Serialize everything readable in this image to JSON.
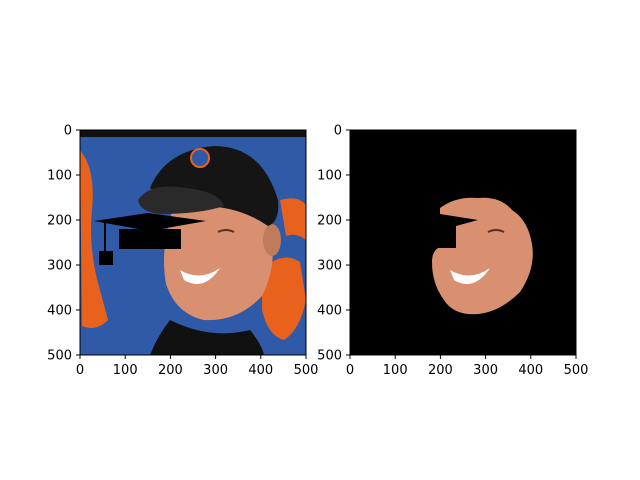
{
  "figure": {
    "background": "#ffffff"
  },
  "chart_data": [
    {
      "type": "image",
      "title": "",
      "xlabel": "",
      "ylabel": "",
      "xlim": [
        0,
        500
      ],
      "ylim": [
        500,
        0
      ],
      "xticks": [
        0,
        100,
        200,
        300,
        400,
        500
      ],
      "yticks": [
        0,
        100,
        200,
        300,
        400,
        500
      ],
      "grid": false,
      "content": "photo of a smiling man in a black baseball cap with team logo against a blue and orange background, with a black graduation cap overlay",
      "colors": {
        "background_blue": "#2f5aa8",
        "orange": "#e8621e",
        "cap": "#151515",
        "skin": "#d89070",
        "overlay": "#000000"
      }
    },
    {
      "type": "image",
      "title": "",
      "xlabel": "",
      "ylabel": "",
      "xlim": [
        0,
        500
      ],
      "ylim": [
        500,
        0
      ],
      "xticks": [
        0,
        100,
        200,
        300,
        400,
        500
      ],
      "yticks": [
        0,
        100,
        200,
        300,
        400,
        500
      ],
      "grid": false,
      "content": "black mask with only the segmented face region visible, cap-shaped notch removed on the left",
      "colors": {
        "background": "#000000",
        "skin": "#d89070"
      }
    }
  ]
}
